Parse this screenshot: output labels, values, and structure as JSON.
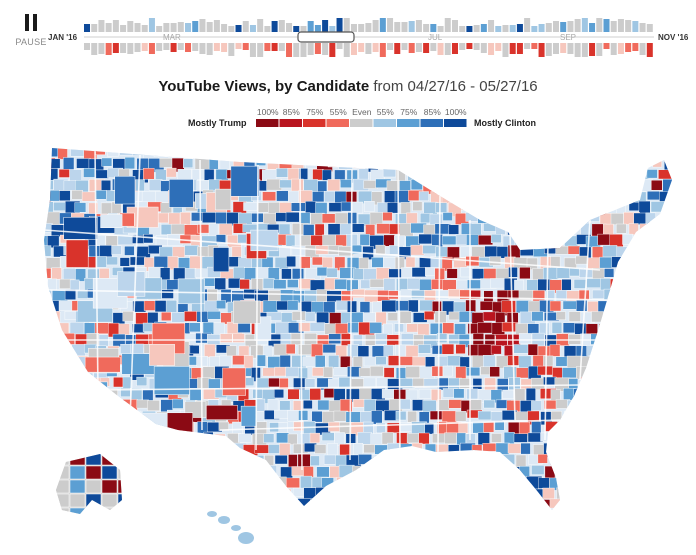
{
  "controls": {
    "pause_label": "PAUSE"
  },
  "timeline": {
    "start_label": "JAN '16",
    "end_label": "NOV '16",
    "month_labels": [
      "MAR",
      "JUL",
      "SEP"
    ]
  },
  "title": {
    "main": "YouTube Views, by Candidate",
    "range": "from 04/27/16 - 05/27/16"
  },
  "legend": {
    "left_label": "Mostly Trump",
    "right_label": "Mostly Clinton",
    "ticks": [
      "100%",
      "85%",
      "75%",
      "55%",
      "Even",
      "55%",
      "75%",
      "85%",
      "100%"
    ],
    "trump_colors": [
      "#8b0a14",
      "#b9151f",
      "#d9332b",
      "#f06a5c"
    ],
    "even_color": "#cccccc",
    "clinton_colors": [
      "#9fc6e3",
      "#5c9fd3",
      "#2e6fb8",
      "#0e4a9a"
    ]
  },
  "colors": {
    "clinton_light": "#dde9f5",
    "clinton_pale": "#bcd5ec",
    "trump_pale": "#f6c7bd",
    "state_border": "#ffffff",
    "scrub_window": "#555555"
  }
}
